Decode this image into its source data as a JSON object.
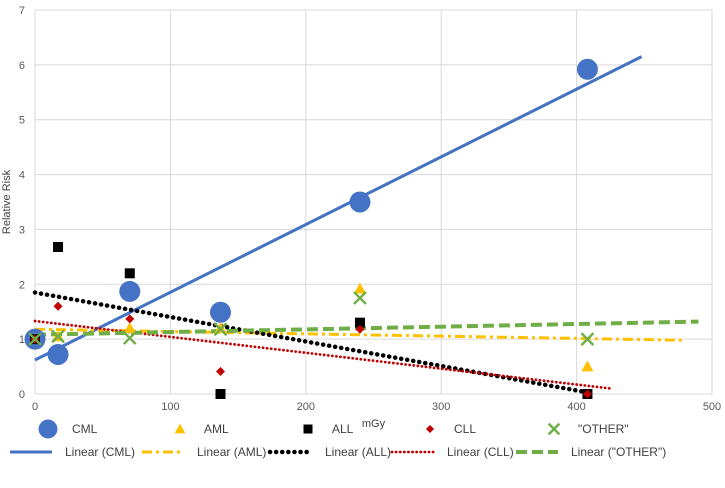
{
  "chart_data": {
    "type": "scatter",
    "title": "",
    "xlabel": "mGy",
    "ylabel": "Relative Risk",
    "xlim": [
      0,
      500
    ],
    "ylim": [
      0,
      7
    ],
    "x_ticks": [
      "0",
      "100",
      "200",
      "300",
      "400",
      "500"
    ],
    "y_ticks": [
      "0",
      "1",
      "2",
      "3",
      "4",
      "5",
      "6",
      "7"
    ],
    "grid": true,
    "legend_position": "bottom",
    "series": [
      {
        "name": "CML",
        "marker": "circle",
        "color": "#4472C4",
        "points": [
          [
            0,
            1.0
          ],
          [
            17,
            0.72
          ],
          [
            70,
            1.87
          ],
          [
            137,
            1.49
          ],
          [
            240,
            3.5
          ],
          [
            408,
            5.92
          ]
        ]
      },
      {
        "name": "AML",
        "marker": "triangle",
        "color": "#FFC000",
        "points": [
          [
            0,
            1.0
          ],
          [
            17,
            1.05
          ],
          [
            70,
            1.2
          ],
          [
            137,
            1.2
          ],
          [
            240,
            1.92
          ],
          [
            408,
            0.5
          ]
        ]
      },
      {
        "name": "ALL",
        "marker": "square",
        "color": "#000000",
        "points": [
          [
            0,
            1.0
          ],
          [
            17,
            2.68
          ],
          [
            70,
            2.2
          ],
          [
            137,
            0.0
          ],
          [
            240,
            1.3
          ],
          [
            408,
            0.0
          ]
        ]
      },
      {
        "name": "CLL",
        "marker": "diamond",
        "color": "#C00000",
        "points": [
          [
            0,
            1.0
          ],
          [
            17,
            1.6
          ],
          [
            70,
            1.37
          ],
          [
            137,
            0.41
          ],
          [
            240,
            1.18
          ],
          [
            408,
            0.0
          ]
        ]
      },
      {
        "name": "\"OTHER\"",
        "marker": "x",
        "color": "#70AD47",
        "points": [
          [
            0,
            1.0
          ],
          [
            17,
            1.05
          ],
          [
            70,
            1.02
          ],
          [
            137,
            1.18
          ],
          [
            240,
            1.75
          ],
          [
            408,
            1.0
          ]
        ]
      }
    ],
    "trendlines": [
      {
        "name": "Linear (CML)",
        "style": "solid",
        "color": "#4472C4",
        "from": [
          0,
          0.62
        ],
        "to": [
          448,
          6.15
        ]
      },
      {
        "name": "Linear (AML)",
        "style": "dashdot",
        "color": "#FFC000",
        "from": [
          0,
          1.18
        ],
        "to": [
          480,
          0.98
        ]
      },
      {
        "name": "Linear (ALL)",
        "style": "dotted",
        "color": "#000000",
        "from": [
          0,
          1.85
        ],
        "to": [
          410,
          0.02
        ]
      },
      {
        "name": "Linear (CLL)",
        "style": "dotted-fine",
        "color": "#C00000",
        "from": [
          0,
          1.33
        ],
        "to": [
          425,
          0.1
        ]
      },
      {
        "name": "Linear (\"OTHER\")",
        "style": "dashed",
        "color": "#70AD47",
        "from": [
          0,
          1.08
        ],
        "to": [
          490,
          1.32
        ]
      }
    ]
  }
}
